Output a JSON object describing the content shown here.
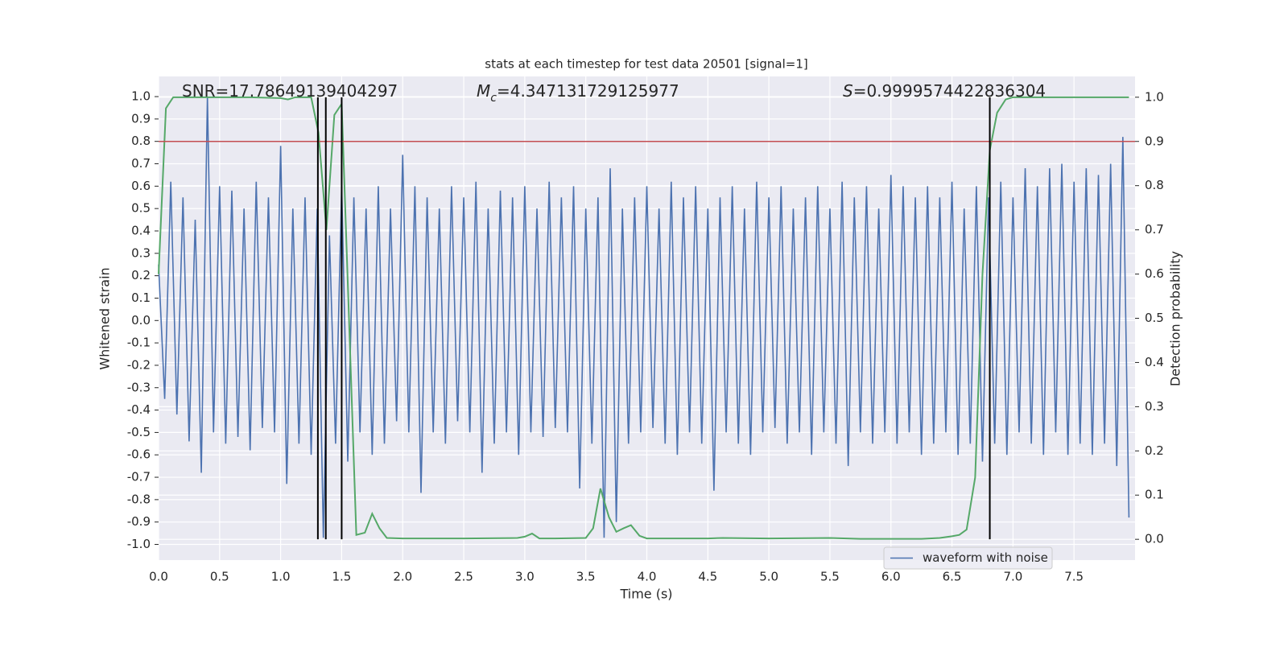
{
  "chart_data": {
    "type": "line",
    "title": "stats at each timestep for test data 20501 [signal=1]",
    "x_label": "Time (s)",
    "y_label": "Whitened strain",
    "y2_label": "Detection probability",
    "annotations": [
      {
        "text": "SNR=17.78649139404297"
      },
      {
        "symbol": "M",
        "subscript": "c",
        "text": "=4.347131729125977"
      },
      {
        "symbol": "S",
        "text": "=0.9999574422836304"
      }
    ],
    "xlim": [
      0,
      8
    ],
    "ylim": [
      -1.07,
      1.09
    ],
    "y2lim": [
      -0.047,
      1.047
    ],
    "xticks": [
      {
        "value": 0,
        "label": "0.0"
      },
      {
        "value": 0.5,
        "label": "0.5"
      },
      {
        "value": 1,
        "label": "1.0"
      },
      {
        "value": 1.5,
        "label": "1.5"
      },
      {
        "value": 2,
        "label": "2.0"
      },
      {
        "value": 2.5,
        "label": "2.5"
      },
      {
        "value": 3,
        "label": "3.0"
      },
      {
        "value": 3.5,
        "label": "3.5"
      },
      {
        "value": 4,
        "label": "4.0"
      },
      {
        "value": 4.5,
        "label": "4.5"
      },
      {
        "value": 5,
        "label": "5.0"
      },
      {
        "value": 5.5,
        "label": "5.5"
      },
      {
        "value": 6,
        "label": "6.0"
      },
      {
        "value": 6.5,
        "label": "6.5"
      },
      {
        "value": 7,
        "label": "7.0"
      },
      {
        "value": 7.5,
        "label": "7.5"
      }
    ],
    "yticks": [
      {
        "value": -1,
        "label": "-1.0"
      },
      {
        "value": -0.9,
        "label": "-0.9"
      },
      {
        "value": -0.8,
        "label": "-0.8"
      },
      {
        "value": -0.7,
        "label": "-0.7"
      },
      {
        "value": -0.6,
        "label": "-0.6"
      },
      {
        "value": -0.5,
        "label": "-0.5"
      },
      {
        "value": -0.4,
        "label": "-0.4"
      },
      {
        "value": -0.3,
        "label": "-0.3"
      },
      {
        "value": -0.2,
        "label": "-0.2"
      },
      {
        "value": -0.1,
        "label": "-0.1"
      },
      {
        "value": 0,
        "label": "0.0"
      },
      {
        "value": 0.1,
        "label": "0.1"
      },
      {
        "value": 0.2,
        "label": "0.2"
      },
      {
        "value": 0.3,
        "label": "0.3"
      },
      {
        "value": 0.4,
        "label": "0.4"
      },
      {
        "value": 0.5,
        "label": "0.5"
      },
      {
        "value": 0.6,
        "label": "0.6"
      },
      {
        "value": 0.7,
        "label": "0.7"
      },
      {
        "value": 0.8,
        "label": "0.8"
      },
      {
        "value": 0.9,
        "label": "0.9"
      },
      {
        "value": 1,
        "label": "1.0"
      }
    ],
    "y2ticks": [
      {
        "value": 0,
        "label": "0.0"
      },
      {
        "value": 0.1,
        "label": "0.1"
      },
      {
        "value": 0.2,
        "label": "0.2"
      },
      {
        "value": 0.3,
        "label": "0.3"
      },
      {
        "value": 0.4,
        "label": "0.4"
      },
      {
        "value": 0.5,
        "label": "0.5"
      },
      {
        "value": 0.6,
        "label": "0.6"
      },
      {
        "value": 0.7,
        "label": "0.7"
      },
      {
        "value": 0.8,
        "label": "0.8"
      },
      {
        "value": 0.9,
        "label": "0.9"
      },
      {
        "value": 1,
        "label": "1.0"
      }
    ],
    "grid": true,
    "legend": "lower right",
    "hline": {
      "y": 0.8,
      "color": "#c44e52"
    },
    "vlines": {
      "x": [
        1.305,
        1.37,
        1.5,
        6.81
      ],
      "ymin": 0,
      "ymax": 1,
      "axis": "y2",
      "color": "#000000"
    },
    "series": [
      {
        "name": "waveform with noise",
        "color": "#4c72b0",
        "x": [
          0,
          0.05,
          0.1,
          0.15,
          0.2,
          0.25,
          0.3,
          0.35,
          0.4,
          0.45,
          0.5,
          0.55,
          0.6,
          0.65,
          0.7,
          0.75,
          0.8,
          0.85,
          0.9,
          0.95,
          1,
          1.05,
          1.1,
          1.15,
          1.2,
          1.25,
          1.3,
          1.35,
          1.4,
          1.45,
          1.5,
          1.55,
          1.6,
          1.65,
          1.7,
          1.75,
          1.8,
          1.85,
          1.9,
          1.95,
          2,
          2.05,
          2.1,
          2.15,
          2.2,
          2.25,
          2.3,
          2.35,
          2.4,
          2.45,
          2.5,
          2.55,
          2.6,
          2.65,
          2.7,
          2.75,
          2.8,
          2.85,
          2.9,
          2.95,
          3,
          3.05,
          3.1,
          3.15,
          3.2,
          3.25,
          3.3,
          3.35,
          3.4,
          3.45,
          3.5,
          3.55,
          3.6,
          3.65,
          3.7,
          3.75,
          3.8,
          3.85,
          3.9,
          3.95,
          4,
          4.05,
          4.1,
          4.15,
          4.2,
          4.25,
          4.3,
          4.35,
          4.4,
          4.45,
          4.5,
          4.55,
          4.6,
          4.65,
          4.7,
          4.75,
          4.8,
          4.85,
          4.9,
          4.95,
          5,
          5.05,
          5.1,
          5.15,
          5.2,
          5.25,
          5.3,
          5.35,
          5.4,
          5.45,
          5.5,
          5.55,
          5.6,
          5.65,
          5.7,
          5.75,
          5.8,
          5.85,
          5.9,
          5.95,
          6,
          6.05,
          6.1,
          6.15,
          6.2,
          6.25,
          6.3,
          6.35,
          6.4,
          6.45,
          6.5,
          6.55,
          6.6,
          6.65,
          6.7,
          6.75,
          6.8,
          6.85,
          6.9,
          6.95,
          7,
          7.05,
          7.1,
          7.15,
          7.2,
          7.25,
          7.3,
          7.35,
          7.4,
          7.45,
          7.5,
          7.55,
          7.6,
          7.65,
          7.7,
          7.75,
          7.8,
          7.85,
          7.9,
          7.95
        ],
        "values": [
          0.25,
          -0.35,
          0.62,
          -0.42,
          0.55,
          -0.54,
          0.45,
          -0.68,
          1.0,
          -0.5,
          0.6,
          -0.55,
          0.58,
          -0.52,
          0.5,
          -0.58,
          0.62,
          -0.48,
          0.55,
          -0.5,
          0.78,
          -0.73,
          0.5,
          -0.55,
          0.55,
          -0.6,
          0.5,
          -0.97,
          0.38,
          -0.55,
          0.6,
          -0.63,
          0.55,
          -0.5,
          0.5,
          -0.6,
          0.6,
          -0.55,
          0.5,
          -0.45,
          0.74,
          -0.5,
          0.6,
          -0.77,
          0.55,
          -0.5,
          0.5,
          -0.55,
          0.6,
          -0.45,
          0.55,
          -0.5,
          0.62,
          -0.68,
          0.5,
          -0.55,
          0.58,
          -0.5,
          0.55,
          -0.6,
          0.6,
          -0.5,
          0.5,
          -0.52,
          0.62,
          -0.48,
          0.55,
          -0.5,
          0.6,
          -0.75,
          0.5,
          -0.55,
          0.55,
          -0.97,
          0.68,
          -0.9,
          0.5,
          -0.55,
          0.55,
          -0.5,
          0.6,
          -0.48,
          0.5,
          -0.55,
          0.62,
          -0.6,
          0.55,
          -0.5,
          0.6,
          -0.55,
          0.5,
          -0.76,
          0.55,
          -0.5,
          0.6,
          -0.55,
          0.5,
          -0.6,
          0.62,
          -0.5,
          0.55,
          -0.48,
          0.6,
          -0.55,
          0.5,
          -0.5,
          0.55,
          -0.6,
          0.6,
          -0.5,
          0.5,
          -0.55,
          0.62,
          -0.65,
          0.55,
          -0.5,
          0.6,
          -0.55,
          0.5,
          -0.5,
          0.65,
          -0.55,
          0.6,
          -0.5,
          0.55,
          -0.6,
          0.6,
          -0.55,
          0.55,
          -0.5,
          0.62,
          -0.6,
          0.5,
          -0.55,
          0.6,
          -0.63,
          0.55,
          -0.55,
          0.62,
          -0.6,
          0.55,
          -0.5,
          0.68,
          -0.55,
          0.6,
          -0.6,
          0.68,
          -0.5,
          0.7,
          -0.6,
          0.62,
          -0.55,
          0.68,
          -0.6,
          0.65,
          -0.55,
          0.7,
          -0.65,
          0.82,
          -0.88
        ]
      },
      {
        "color": "#55a868",
        "axis": "y2",
        "x": [
          0,
          0.06,
          0.12,
          0.25,
          0.5,
          0.75,
          1,
          1.06,
          1.12,
          1.25,
          1.31,
          1.375,
          1.44,
          1.5,
          1.56,
          1.62,
          1.69,
          1.75,
          1.81,
          1.87,
          2,
          2.5,
          2.94,
          3,
          3.06,
          3.12,
          3.25,
          3.5,
          3.56,
          3.62,
          3.69,
          3.75,
          3.81,
          3.87,
          3.94,
          4,
          4.5,
          4.62,
          5,
          5.5,
          5.75,
          6.25,
          6.4,
          6.5,
          6.56,
          6.62,
          6.69,
          6.75,
          6.81,
          6.87,
          6.94,
          7,
          7.5,
          7.95
        ],
        "values": [
          0.6,
          0.975,
          1.0,
          1.0,
          1.0,
          1.0,
          0.998,
          0.995,
          1.0,
          1.0,
          0.92,
          0.7,
          0.96,
          0.985,
          0.5,
          0.01,
          0.015,
          0.058,
          0.025,
          0.003,
          0.002,
          0.002,
          0.003,
          0.006,
          0.013,
          0.002,
          0.002,
          0.003,
          0.025,
          0.115,
          0.05,
          0.017,
          0.025,
          0.032,
          0.008,
          0.002,
          0.002,
          0.003,
          0.002,
          0.003,
          0.001,
          0.001,
          0.003,
          0.007,
          0.01,
          0.022,
          0.14,
          0.6,
          0.88,
          0.965,
          0.995,
          1.0,
          1.0,
          1.0
        ]
      }
    ]
  }
}
